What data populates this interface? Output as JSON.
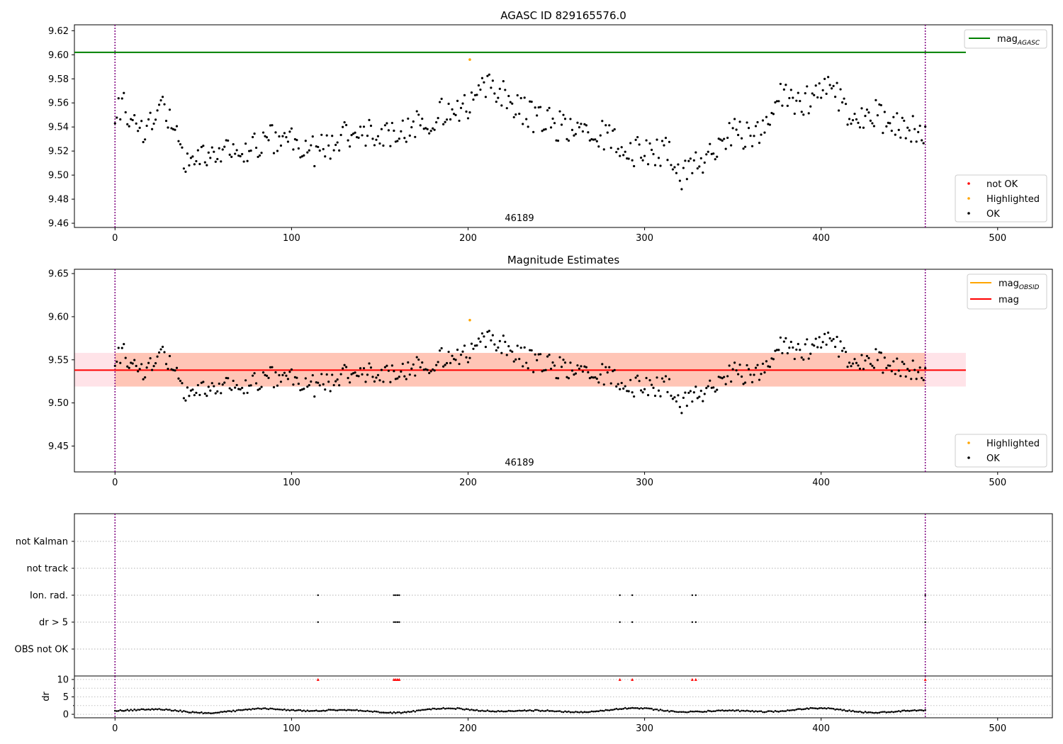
{
  "figure": {
    "title_top": "AGASC ID 829165576.0",
    "title_mid": "Magnitude Estimates",
    "obsid_label": "46189"
  },
  "colors": {
    "ok": "#000000",
    "highlighted": "#ffa500",
    "not_ok": "#ff0000",
    "mag_agasc": "#008000",
    "mag_obsid": "#ffa500",
    "mag": "#ff0000",
    "obs_boundary": "#800080",
    "band_obsid": "#ffa07a",
    "band_mag": "#ffc0cb"
  },
  "chart_data": [
    {
      "type": "scatter",
      "title": "AGASC ID 829165576.0",
      "xlim": [
        -23,
        531
      ],
      "ylim": [
        9.4565,
        9.6249
      ],
      "xticks": [
        0,
        100,
        200,
        300,
        400,
        500
      ],
      "yticks": [
        9.46,
        9.48,
        9.5,
        9.52,
        9.54,
        9.56,
        9.58,
        9.6,
        9.62
      ],
      "ytick_labels": [
        "9.46",
        "9.48",
        "9.50",
        "9.52",
        "9.54",
        "9.56",
        "9.58",
        "9.60",
        "9.62"
      ],
      "mag_agasc": 9.602,
      "mag_agasc_xrange": [
        -23,
        482
      ],
      "obs_boundaries": [
        0,
        459
      ],
      "annotation": {
        "text": "46189",
        "x": 229
      },
      "legend_lines": [
        {
          "label": "mag",
          "sub": "AGASC"
        }
      ],
      "legend_points": [
        "not OK",
        "Highlighted",
        "OK"
      ],
      "highlighted_points": [
        [
          201,
          9.596
        ]
      ]
    },
    {
      "type": "scatter",
      "title": "Magnitude Estimates",
      "xlim": [
        -23,
        531
      ],
      "ylim": [
        9.42,
        9.655
      ],
      "xticks": [
        0,
        100,
        200,
        300,
        400,
        500
      ],
      "yticks": [
        9.45,
        9.5,
        9.55,
        9.6,
        9.65
      ],
      "ytick_labels": [
        "9.45",
        "9.50",
        "9.55",
        "9.60",
        "9.65"
      ],
      "mag": 9.538,
      "mag_band": [
        9.519,
        9.558
      ],
      "mag_band_xrange": [
        -23,
        482
      ],
      "obsid_band_xrange": [
        0,
        459
      ],
      "obs_boundaries": [
        0,
        459
      ],
      "annotation": {
        "text": "46189",
        "x": 229
      },
      "legend_lines": [
        {
          "label": "mag",
          "sub": "OBSID"
        },
        {
          "label": "mag",
          "sub": ""
        }
      ],
      "legend_points": [
        "Highlighted",
        "OK"
      ],
      "highlighted_points": [
        [
          201,
          9.596
        ]
      ]
    },
    {
      "type": "scatter",
      "xlim": [
        -23,
        531
      ],
      "categories": [
        "not Kalman",
        "not track",
        "Ion. rad.",
        "dr > 5",
        "OBS not OK"
      ],
      "flag_points": {
        "Ion. rad.": [
          115,
          158,
          159,
          160,
          161,
          286,
          293,
          327,
          329,
          459
        ],
        "dr > 5": [
          115,
          158,
          159,
          160,
          161,
          286,
          293,
          327,
          329,
          459
        ]
      },
      "obs_boundaries": [
        0,
        459
      ]
    },
    {
      "type": "scatter",
      "xlim": [
        -23,
        531
      ],
      "ylim": [
        -1,
        11
      ],
      "yticks": [
        0,
        5,
        10
      ],
      "ytick_labels": [
        "0",
        "5",
        "10"
      ],
      "ylabel": "dr",
      "xticks": [
        0,
        100,
        200,
        300,
        400,
        500
      ],
      "clipped_points_x": [
        115,
        158,
        159,
        160,
        161,
        286,
        293,
        327,
        329,
        459
      ],
      "clipped_value": 10,
      "obs_boundaries": [
        0,
        459
      ]
    }
  ]
}
